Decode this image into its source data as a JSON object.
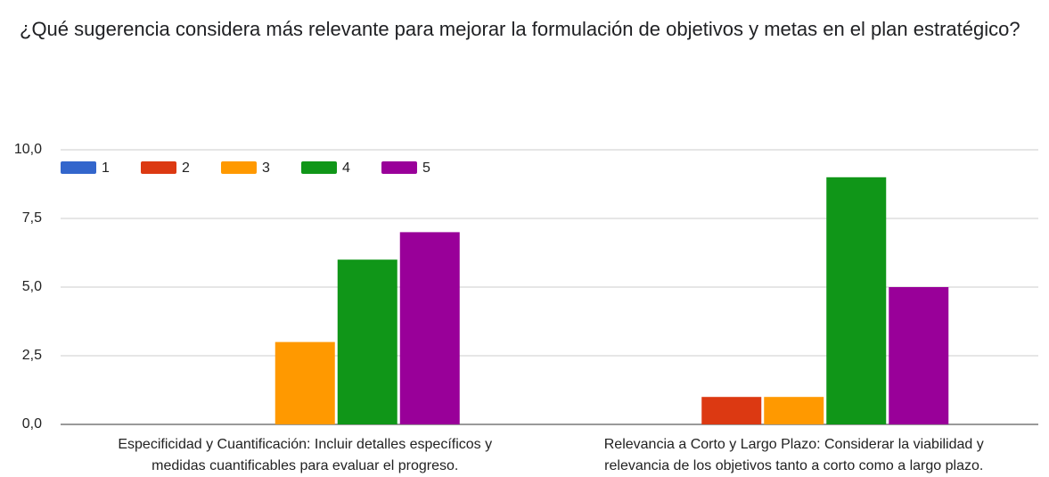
{
  "chart_data": {
    "type": "bar",
    "title": "¿Qué sugerencia considera más relevante para mejorar la formulación de objetivos y metas en el plan estratégico?",
    "categories": [
      [
        "Especificidad y Cuantificación: Incluir detalles específicos y",
        "medidas cuantificables para evaluar el progreso."
      ],
      [
        "Relevancia a Corto y Largo Plazo: Considerar la viabilidad y",
        "relevancia de los objetivos tanto a corto como a largo plazo."
      ]
    ],
    "series": [
      {
        "name": "1",
        "color": "#3366cc",
        "values": [
          0,
          0
        ]
      },
      {
        "name": "2",
        "color": "#dc3912",
        "values": [
          0,
          1
        ]
      },
      {
        "name": "3",
        "color": "#ff9900",
        "values": [
          3,
          1
        ]
      },
      {
        "name": "4",
        "color": "#109618",
        "values": [
          6,
          9
        ]
      },
      {
        "name": "5",
        "color": "#990099",
        "values": [
          7,
          5
        ]
      }
    ],
    "ylim": [
      0,
      10
    ],
    "yticks": [
      {
        "value": 0,
        "label": "0,0"
      },
      {
        "value": 2.5,
        "label": "2,5"
      },
      {
        "value": 5,
        "label": "5,0"
      },
      {
        "value": 7.5,
        "label": "7,5"
      },
      {
        "value": 10,
        "label": "10,0"
      }
    ],
    "grid": true,
    "legend": "top-left"
  }
}
